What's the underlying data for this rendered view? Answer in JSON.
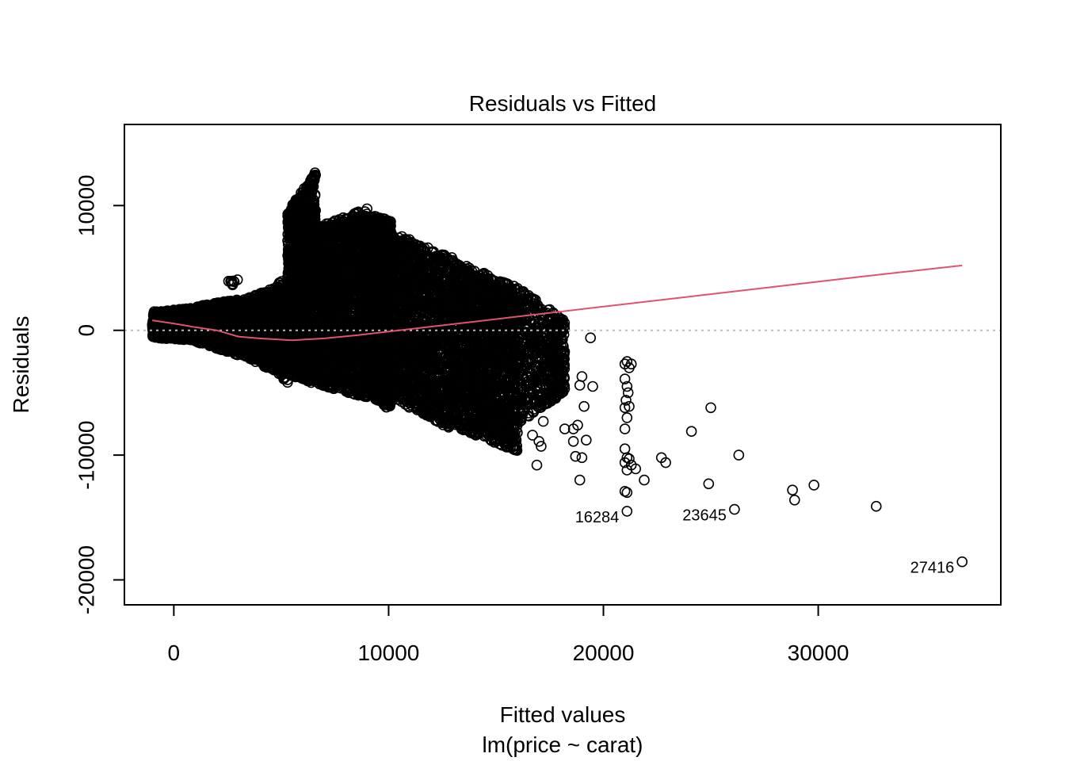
{
  "chart_data": {
    "type": "scatter",
    "title": "Residuals vs Fitted",
    "xlabel": "Fitted values",
    "subtitle": "lm(price ~ carat)",
    "ylabel": "Residuals",
    "xlim": [
      -2300,
      38500
    ],
    "ylim": [
      -22000,
      16500
    ],
    "xticks": [
      0,
      10000,
      20000,
      30000
    ],
    "yticks": [
      -20000,
      -10000,
      0,
      10000
    ],
    "grid": false,
    "reference_line": {
      "y": 0,
      "style": "dotted",
      "color": "#bebebe"
    },
    "colors": {
      "points": "#000000",
      "smooth": "#DF536B",
      "box": "#000000"
    },
    "labelled_points": [
      {
        "label": "16284",
        "x": 21100,
        "y": -14500
      },
      {
        "label": "23645",
        "x": 26100,
        "y": -14350
      },
      {
        "label": "27416",
        "x": 36700,
        "y": -18550
      }
    ],
    "outlier_points": [
      [
        19400,
        -600
      ],
      [
        18900,
        -4400
      ],
      [
        19000,
        -3700
      ],
      [
        19500,
        -4500
      ],
      [
        18800,
        -7600
      ],
      [
        18600,
        -7900
      ],
      [
        19200,
        -8800
      ],
      [
        18700,
        -10100
      ],
      [
        19000,
        -10200
      ],
      [
        18900,
        -12000
      ],
      [
        18600,
        -8900
      ],
      [
        19100,
        -6100
      ],
      [
        18200,
        -7900
      ],
      [
        17400,
        -5200
      ],
      [
        17200,
        -7300
      ],
      [
        17000,
        -8900
      ],
      [
        16900,
        -10800
      ],
      [
        17100,
        -9300
      ],
      [
        16700,
        -8400
      ],
      [
        21000,
        -2700
      ],
      [
        21100,
        -2500
      ],
      [
        21200,
        -3000
      ],
      [
        21300,
        -2700
      ],
      [
        21000,
        -3900
      ],
      [
        21100,
        -4500
      ],
      [
        21150,
        -5000
      ],
      [
        21050,
        -5600
      ],
      [
        21200,
        -6100
      ],
      [
        21000,
        -6200
      ],
      [
        21100,
        -7000
      ],
      [
        21000,
        -7900
      ],
      [
        21000,
        -9500
      ],
      [
        21100,
        -10200
      ],
      [
        21200,
        -10300
      ],
      [
        21000,
        -10600
      ],
      [
        21300,
        -10800
      ],
      [
        21100,
        -11200
      ],
      [
        21500,
        -11100
      ],
      [
        21000,
        -12900
      ],
      [
        21100,
        -13000
      ],
      [
        21900,
        -12000
      ],
      [
        22700,
        -10200
      ],
      [
        22900,
        -10600
      ],
      [
        24100,
        -8100
      ],
      [
        25000,
        -6200
      ],
      [
        26300,
        -10000
      ],
      [
        24900,
        -12300
      ],
      [
        28800,
        -12800
      ],
      [
        28900,
        -13600
      ],
      [
        29800,
        -12400
      ],
      [
        32700,
        -14100
      ],
      [
        21100,
        -14500
      ],
      [
        26100,
        -14350
      ],
      [
        36700,
        -18550
      ]
    ],
    "dense_bands": [
      {
        "x": [
          -1000,
          1000
        ],
        "ymin": [
          -600,
          -800
        ],
        "ymax": [
          1500,
          1800
        ],
        "n": 600
      },
      {
        "x": [
          1000,
          3000
        ],
        "ymin": [
          -900,
          -2000
        ],
        "ymax": [
          1900,
          2500
        ],
        "n": 900
      },
      {
        "x": [
          2500,
          3000
        ],
        "ymin": [
          3600,
          3600
        ],
        "ymax": [
          4100,
          4100
        ],
        "n": 8
      },
      {
        "x": [
          3000,
          5000
        ],
        "ymin": [
          -1800,
          -3600
        ],
        "ymax": [
          2300,
          3600
        ],
        "n": 1000
      },
      {
        "x": [
          4500,
          5100
        ],
        "ymin": [
          -3000,
          -3800
        ],
        "ymax": [
          2000,
          4800
        ],
        "n": 200
      },
      {
        "x": [
          5000,
          5300
        ],
        "ymin": [
          -3500,
          -4600
        ],
        "ymax": [
          2000,
          3500
        ],
        "n": 120
      },
      {
        "x": [
          5300,
          6600
        ],
        "ymin": [
          -3600,
          -4300
        ],
        "ymax": [
          9500,
          12700
        ],
        "n": 1600
      },
      {
        "x": [
          6600,
          9000
        ],
        "ymin": [
          -4300,
          -5400
        ],
        "ymax": [
          8200,
          9900
        ],
        "n": 1800
      },
      {
        "x": [
          9000,
          10100
        ],
        "ymin": [
          -5000,
          -6500
        ],
        "ymax": [
          9300,
          8800
        ],
        "n": 1600
      },
      {
        "x": [
          10100,
          13000
        ],
        "ymin": [
          -5400,
          -8000
        ],
        "ymax": [
          7900,
          5800
        ],
        "n": 1700
      },
      {
        "x": [
          13000,
          16000
        ],
        "ymin": [
          -7700,
          -9700
        ],
        "ymax": [
          5600,
          3500
        ],
        "n": 1800
      },
      {
        "x": [
          16000,
          18200
        ],
        "ymin": [
          -7500,
          -5000
        ],
        "ymax": [
          3500,
          800
        ],
        "n": 600
      }
    ],
    "series": [
      {
        "type": "line",
        "x": [
          -1000,
          0,
          1000,
          2000,
          3000,
          4000,
          5500,
          7000,
          8500,
          10000,
          12000,
          14000,
          16000,
          18000,
          20000,
          24000,
          28000,
          32000,
          36700
        ],
        "y": [
          800,
          550,
          250,
          0,
          -500,
          -650,
          -800,
          -650,
          -400,
          -100,
          300,
          700,
          1100,
          1500,
          1900,
          2700,
          3500,
          4300,
          5200
        ]
      }
    ]
  }
}
